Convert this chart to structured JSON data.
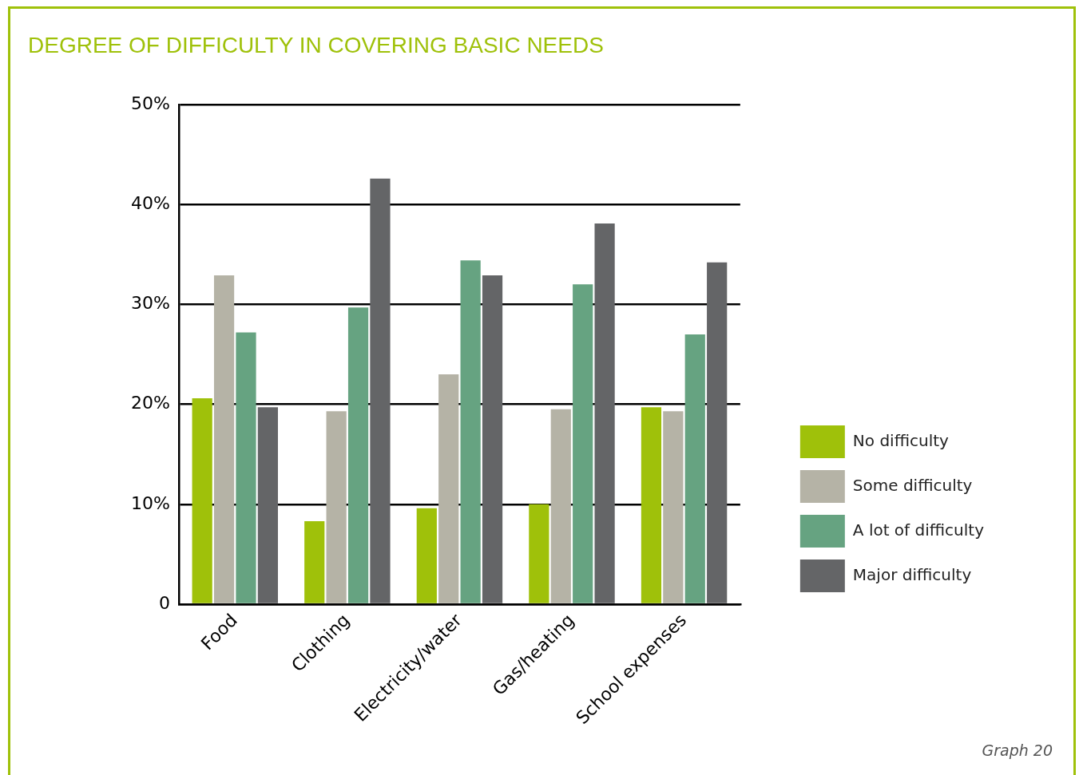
{
  "chart_data": {
    "type": "bar",
    "title": "DEGREE OF DIFFICULTY IN COVERING BASIC NEEDS",
    "categories": [
      "Food",
      "Clothing",
      "Electricity/water",
      "Gas/heating",
      "School expenses"
    ],
    "series": [
      {
        "name": "No difficulty",
        "color": "#9fc10a",
        "values": [
          20.6,
          8.3,
          9.6,
          10.0,
          19.7
        ]
      },
      {
        "name": "Some difficulty",
        "color": "#b5b3a6",
        "values": [
          32.9,
          19.3,
          23.0,
          19.5,
          19.3
        ]
      },
      {
        "name": "A lot of difficulty",
        "color": "#66a381",
        "values": [
          27.2,
          29.7,
          34.4,
          32.0,
          27.0
        ]
      },
      {
        "name": "Major difficulty",
        "color": "#646567",
        "values": [
          19.7,
          42.6,
          32.9,
          38.1,
          34.2
        ]
      }
    ],
    "ylim": [
      0,
      50
    ],
    "yticks": [
      0,
      {
        "value": 10,
        "label": "10%"
      },
      {
        "value": 20,
        "label": "20%"
      },
      {
        "value": 30,
        "label": "30%"
      },
      {
        "value": 40,
        "label": "40%"
      },
      {
        "value": 50,
        "label": "50%"
      }
    ],
    "grid": "y",
    "legend": "right",
    "annotations": [
      "Graph 20"
    ]
  }
}
